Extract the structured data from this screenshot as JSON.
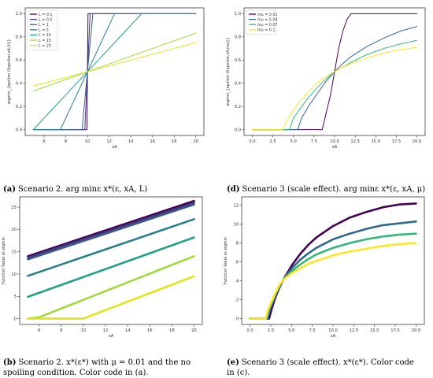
{
  "captions": [
    {
      "tag": "(a)",
      "lines": [
        "Scenario 2. arg minε x*(ε, xA, L)"
      ]
    },
    {
      "tag": "(d)",
      "lines": [
        "Scenario 3 (scale effect). arg minε x*(ε, xA, μ)"
      ]
    },
    {
      "tag": "(b)",
      "lines": [
        "Scenario 2. x*(ε*) with μ = 0.01 and the no",
        "spoiling condition. Color code in (a)."
      ]
    },
    {
      "tag": "(e)",
      "lines": [
        "Scenario 3 (scale effect). x*(ε*). Color code",
        "in (c)."
      ]
    }
  ],
  "chart_data": [
    {
      "id": "a",
      "type": "line",
      "xlabel": "xA",
      "ylabel": "argmin_{epsilon (f(epsilon,xA,lt))}",
      "xlim": [
        4.25,
        20.75
      ],
      "ylim": [
        -0.05,
        1.05
      ],
      "xticks": [
        6,
        8,
        10,
        12,
        14,
        16,
        18,
        20
      ],
      "yticks": [
        0.0,
        0.2,
        0.4,
        0.6,
        0.8,
        1.0
      ],
      "ytick_labels": [
        "0.0",
        "0.2",
        "0.4",
        "0.6",
        "0.8",
        "1.0"
      ],
      "legend_position": "top-left",
      "stroke_width": 1,
      "series": [
        {
          "name": "L = 0.1",
          "color": "#440154",
          "x": [
            5,
            9.95,
            10.05,
            20
          ],
          "y": [
            0,
            0,
            1,
            1
          ]
        },
        {
          "name": "L = 0.5",
          "color": "#46327e",
          "x": [
            5,
            9.75,
            10.25,
            20
          ],
          "y": [
            0,
            0,
            1,
            1
          ]
        },
        {
          "name": "L = 1",
          "color": "#365c8d",
          "x": [
            5,
            9.5,
            10.5,
            20
          ],
          "y": [
            0,
            0,
            1,
            1
          ]
        },
        {
          "name": "L = 5",
          "color": "#277f8e",
          "x": [
            5,
            7.5,
            12.5,
            20
          ],
          "y": [
            0,
            0,
            1,
            1
          ]
        },
        {
          "name": "L = 10",
          "color": "#1fa187",
          "x": [
            5,
            15,
            20
          ],
          "y": [
            0,
            1,
            1
          ]
        },
        {
          "name": "L = 15",
          "color": "#9fda3a",
          "x": [
            5,
            20
          ],
          "y": [
            0.333,
            0.833
          ]
        },
        {
          "name": "L = 20",
          "color": "#e3e418",
          "x": [
            5,
            20
          ],
          "y": [
            0.375,
            0.75
          ]
        }
      ]
    },
    {
      "id": "d",
      "type": "line",
      "xlabel": "xA",
      "ylabel": "argmin_{epsilon (f(epsilon,xA,mu))}",
      "xlim": [
        -1,
        21
      ],
      "ylim": [
        -0.05,
        1.05
      ],
      "xticks": [
        0.0,
        2.5,
        5.0,
        7.5,
        10.0,
        12.5,
        15.0,
        17.5,
        20.0
      ],
      "xtick_labels": [
        "0.0",
        "2.5",
        "5.0",
        "7.5",
        "10.0",
        "12.5",
        "15.0",
        "17.5",
        "20.0"
      ],
      "yticks": [
        0.0,
        0.2,
        0.4,
        0.6,
        0.8,
        1.0
      ],
      "ytick_labels": [
        "0.0",
        "0.2",
        "0.4",
        "0.6",
        "0.8",
        "1.0"
      ],
      "legend_position": "top-left",
      "stroke_width": 1,
      "series": [
        {
          "name": "mu = 0.01",
          "color": "#440154",
          "x": [
            0,
            8.5,
            9,
            9.5,
            10,
            10.5,
            11,
            11.5,
            12,
            20
          ],
          "y": [
            0,
            0,
            0.15,
            0.3,
            0.5,
            0.7,
            0.85,
            0.95,
            1,
            1
          ]
        },
        {
          "name": "mu = 0.04",
          "color": "#31688e",
          "x": [
            0,
            5.5,
            6,
            7,
            8,
            9,
            10,
            11,
            12,
            14,
            16,
            18,
            20
          ],
          "y": [
            0,
            0,
            0.1,
            0.22,
            0.32,
            0.42,
            0.5,
            0.57,
            0.63,
            0.72,
            0.79,
            0.85,
            0.89
          ]
        },
        {
          "name": "mu = 0.07",
          "color": "#35b779",
          "x": [
            0,
            4.5,
            5,
            6,
            7,
            8,
            9,
            10,
            11,
            12,
            14,
            16,
            18,
            20
          ],
          "y": [
            0,
            0,
            0.1,
            0.2,
            0.29,
            0.37,
            0.44,
            0.5,
            0.54,
            0.58,
            0.65,
            0.7,
            0.74,
            0.77
          ]
        },
        {
          "name": "mu = 0.1",
          "color": "#fde725",
          "x": [
            0,
            3.7,
            4,
            5,
            6,
            7,
            8,
            9,
            10,
            11,
            12,
            14,
            16,
            18,
            20
          ],
          "y": [
            0,
            0,
            0.05,
            0.17,
            0.26,
            0.34,
            0.41,
            0.46,
            0.5,
            0.54,
            0.57,
            0.62,
            0.66,
            0.69,
            0.71
          ]
        }
      ]
    },
    {
      "id": "b",
      "type": "line",
      "xlabel": "xA",
      "ylabel": "Function Value at argmin",
      "xlim": [
        4.25,
        20.75
      ],
      "ylim": [
        -1.3,
        27.3
      ],
      "xticks": [
        6,
        8,
        10,
        12,
        14,
        16,
        18,
        20
      ],
      "yticks": [
        0,
        5,
        10,
        15,
        20,
        25
      ],
      "stroke_width": 2.6,
      "series": [
        {
          "color": "#440154",
          "x": [
            5,
            20
          ],
          "y": [
            14.0,
            26.4
          ]
        },
        {
          "color": "#46327e",
          "x": [
            5,
            20
          ],
          "y": [
            13.7,
            26.0
          ]
        },
        {
          "color": "#365c8d",
          "x": [
            5,
            20
          ],
          "y": [
            13.3,
            25.6
          ]
        },
        {
          "color": "#277f8e",
          "x": [
            5,
            20
          ],
          "y": [
            9.6,
            22.3
          ]
        },
        {
          "color": "#1fa187",
          "x": [
            5,
            20
          ],
          "y": [
            4.9,
            18.2
          ]
        },
        {
          "color": "#9fda3a",
          "x": [
            5,
            6,
            20
          ],
          "y": [
            0,
            0.3,
            14.0
          ]
        },
        {
          "color": "#e3e418",
          "x": [
            5,
            10,
            20
          ],
          "y": [
            0,
            0,
            9.5
          ]
        }
      ]
    },
    {
      "id": "e",
      "type": "line",
      "xlabel": "xA",
      "ylabel": "Function Value at argmin",
      "xlim": [
        -1,
        21
      ],
      "ylim": [
        -0.62,
        12.9
      ],
      "xticks": [
        0.0,
        2.5,
        5.0,
        7.5,
        10.0,
        12.5,
        15.0,
        17.5,
        20.0
      ],
      "xtick_labels": [
        "0.0",
        "2.5",
        "5.0",
        "7.5",
        "10.0",
        "12.5",
        "15.0",
        "17.5",
        "20.0"
      ],
      "yticks": [
        0,
        2,
        4,
        6,
        8,
        10,
        12
      ],
      "stroke_width": 2.6,
      "series": [
        {
          "color": "#440154",
          "x": [
            0,
            2.3,
            2.6,
            3,
            3.5,
            4,
            5,
            6,
            7,
            8,
            10,
            12,
            14,
            16,
            18,
            20
          ],
          "y": [
            0,
            0,
            1,
            2.1,
            3.2,
            4.1,
            5.6,
            6.8,
            7.8,
            8.6,
            9.8,
            10.7,
            11.3,
            11.8,
            12.1,
            12.2
          ]
        },
        {
          "color": "#31688e",
          "x": [
            0,
            2.1,
            2.4,
            3,
            3.5,
            4,
            5,
            6,
            7,
            8,
            10,
            12,
            14,
            16,
            18,
            20
          ],
          "y": [
            0,
            0,
            1,
            2.3,
            3.3,
            4.1,
            5.3,
            6.2,
            6.9,
            7.5,
            8.4,
            9.0,
            9.5,
            9.9,
            10.1,
            10.3
          ]
        },
        {
          "color": "#35b779",
          "x": [
            0,
            2.0,
            2.3,
            3,
            3.5,
            4,
            5,
            6,
            7,
            8,
            10,
            12,
            14,
            16,
            18,
            20
          ],
          "y": [
            0,
            0,
            1,
            2.5,
            3.4,
            4.1,
            5.0,
            5.7,
            6.3,
            6.8,
            7.5,
            8.0,
            8.4,
            8.7,
            8.9,
            9.0
          ]
        },
        {
          "color": "#fde725",
          "x": [
            0,
            1.9,
            2.2,
            3,
            3.5,
            4,
            5,
            6,
            7,
            8,
            10,
            12,
            14,
            16,
            18,
            20
          ],
          "y": [
            0,
            0,
            1,
            2.6,
            3.5,
            4.1,
            4.8,
            5.3,
            5.8,
            6.1,
            6.7,
            7.1,
            7.4,
            7.7,
            7.9,
            8.0
          ]
        }
      ]
    }
  ]
}
